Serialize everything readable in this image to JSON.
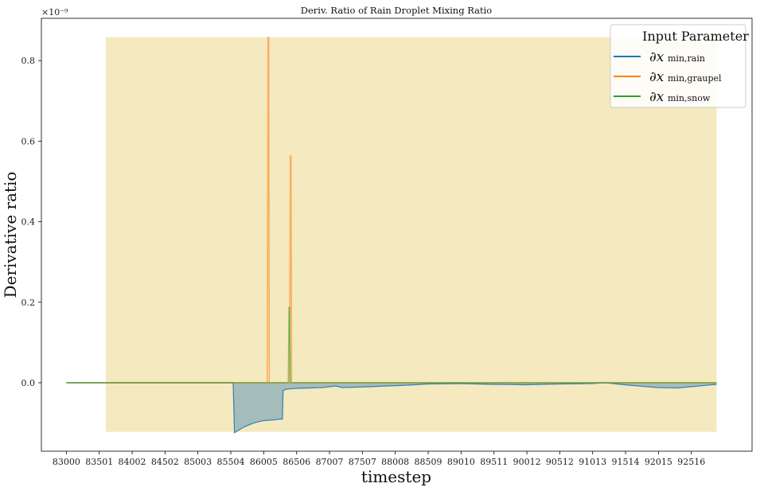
{
  "chart_data": {
    "type": "line",
    "title": "Deriv. Ratio of Rain Droplet Mixing Ratio",
    "xlabel": "timestep",
    "ylabel": "Derivative ratio",
    "y_offset_text": "×10⁻⁹",
    "xlim": [
      82620,
      93440
    ],
    "ylim": [
      -0.17,
      0.905
    ],
    "x_ticks": [
      83000,
      83501,
      84002,
      84502,
      85003,
      85504,
      86005,
      86506,
      87007,
      87507,
      88008,
      88509,
      89010,
      89511,
      90012,
      90512,
      91013,
      91514,
      92015,
      92516
    ],
    "y_ticks": [
      0.0,
      0.2,
      0.4,
      0.6,
      0.8
    ],
    "y_tick_labels": [
      "0.0",
      "0.2",
      "0.4",
      "0.6",
      "0.8"
    ],
    "grid": false,
    "legend": {
      "position": "top-right",
      "title": "Input Parameter",
      "entries": [
        {
          "label": "∂x_min,rain",
          "main": "∂x",
          "sub": "min,rain",
          "color": "#1f77b4"
        },
        {
          "label": "∂x_min,graupel",
          "main": "∂x",
          "sub": "min,graupel",
          "color": "#ff7f0e"
        },
        {
          "label": "∂x_min,snow",
          "main": "∂x",
          "sub": "min,snow",
          "color": "#2ca02c"
        }
      ]
    },
    "highlight_region": {
      "x": [
        83600,
        92900
      ],
      "y": [
        -0.122,
        0.858
      ],
      "color": "#f5e9bf"
    },
    "series": [
      {
        "name": "∂x_min,rain",
        "color": "#1f77b4",
        "fill": true,
        "x": [
          83000,
          85540,
          85560,
          85700,
          85850,
          86000,
          86180,
          86200,
          86290,
          86300,
          86320,
          86330,
          86350,
          86500,
          86900,
          87100,
          87200,
          87600,
          88200,
          88500,
          89000,
          89500,
          90000,
          90500,
          91000,
          91200,
          91500,
          92000,
          92300,
          92500,
          92900
        ],
        "y": [
          0,
          0,
          -0.124,
          -0.11,
          -0.1,
          -0.094,
          -0.092,
          -0.091,
          -0.09,
          -0.02,
          -0.018,
          -0.017,
          -0.016,
          -0.014,
          -0.012,
          -0.008,
          -0.012,
          -0.01,
          -0.006,
          -0.003,
          -0.002,
          -0.004,
          -0.005,
          -0.003,
          -0.002,
          0.0,
          -0.005,
          -0.012,
          -0.013,
          -0.01,
          -0.004
        ]
      },
      {
        "name": "∂x_min,graupel",
        "color": "#ff7f0e",
        "x": [
          83000,
          86060,
          86070,
          86080,
          86090,
          86100,
          86400,
          86410,
          86420,
          86430,
          86440,
          92900
        ],
        "y": [
          0,
          0,
          0.858,
          0.858,
          0.0,
          0,
          0,
          0.563,
          0.563,
          0.0,
          0,
          0
        ]
      },
      {
        "name": "∂x_min,snow",
        "color": "#2ca02c",
        "x": [
          83000,
          86380,
          86390,
          86400,
          86410,
          86420,
          92900
        ],
        "y": [
          0,
          0,
          0.187,
          0.187,
          0.0,
          0,
          0
        ]
      }
    ]
  }
}
